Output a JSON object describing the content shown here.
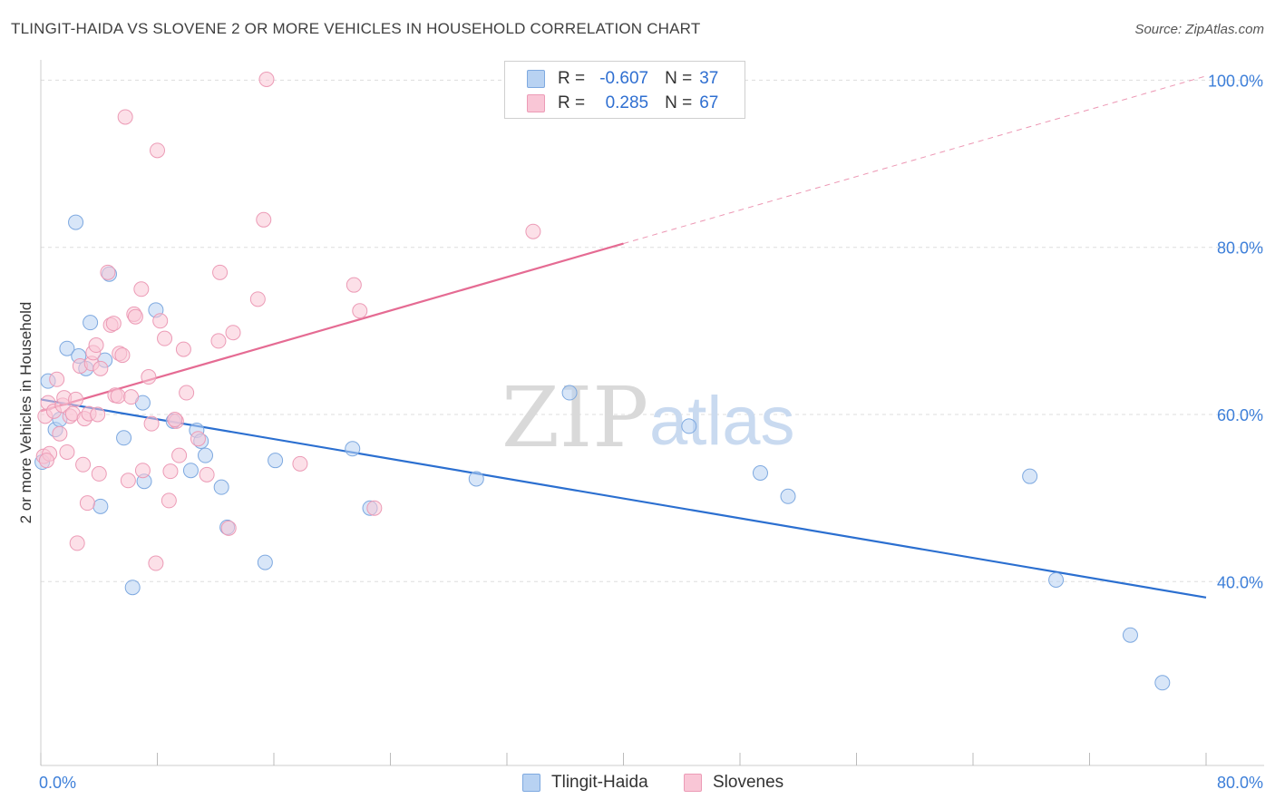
{
  "title": "TLINGIT-HAIDA VS SLOVENE 2 OR MORE VEHICLES IN HOUSEHOLD CORRELATION CHART",
  "source": "Source: ZipAtlas.com",
  "watermark": {
    "zip": "ZIP",
    "atlas": "atlas"
  },
  "legend": {
    "r_label": "R =",
    "n_label": "N =",
    "rows": [
      {
        "r": "-0.607",
        "n": "37"
      },
      {
        "r": "0.285",
        "n": "67"
      }
    ]
  },
  "colors": {
    "blue_fill": "#b8d2f2",
    "blue_stroke": "#7ea9e0",
    "blue_line": "#2b6fd0",
    "pink_fill": "#f9c6d6",
    "pink_stroke": "#ec9bb6",
    "pink_line": "#e56b93",
    "tick_text": "#3d7fd9",
    "grid": "#dddddd"
  },
  "chart_data": {
    "type": "scatter",
    "title": "TLINGIT-HAIDA VS SLOVENE 2 OR MORE VEHICLES IN HOUSEHOLD CORRELATION CHART",
    "xlabel": "",
    "ylabel": "2 or more Vehicles in Household",
    "xlim": [
      0,
      80
    ],
    "ylim": [
      18,
      102
    ],
    "x_tick_labels": [
      "0.0%",
      "80.0%"
    ],
    "y_ticks": [
      40,
      60,
      80,
      100
    ],
    "y_tick_labels": [
      "40.0%",
      "60.0%",
      "80.0%",
      "100.0%"
    ],
    "grid": true,
    "legend_position": "top-center",
    "series": [
      {
        "name": "Tlingit-Haida",
        "color": "#b8d2f2",
        "trend": {
          "x0": 0,
          "y0": 61.8,
          "x1": 80,
          "y1": 38.1,
          "dashed_from": null
        },
        "points": [
          [
            0.1,
            54.3
          ],
          [
            0.5,
            64.0
          ],
          [
            1.0,
            58.2
          ],
          [
            1.3,
            59.4
          ],
          [
            1.8,
            67.9
          ],
          [
            2.4,
            83.0
          ],
          [
            2.6,
            67.0
          ],
          [
            3.1,
            65.5
          ],
          [
            3.4,
            71.0
          ],
          [
            4.1,
            49.0
          ],
          [
            4.4,
            66.5
          ],
          [
            4.7,
            76.8
          ],
          [
            5.7,
            57.2
          ],
          [
            6.3,
            39.3
          ],
          [
            7.0,
            61.4
          ],
          [
            7.1,
            52.0
          ],
          [
            7.9,
            72.5
          ],
          [
            9.1,
            59.2
          ],
          [
            10.3,
            53.3
          ],
          [
            10.7,
            58.1
          ],
          [
            11.0,
            56.8
          ],
          [
            11.3,
            55.1
          ],
          [
            12.4,
            51.3
          ],
          [
            12.8,
            46.5
          ],
          [
            15.4,
            42.3
          ],
          [
            16.1,
            54.5
          ],
          [
            21.4,
            55.9
          ],
          [
            22.6,
            48.8
          ],
          [
            29.9,
            52.3
          ],
          [
            36.3,
            62.6
          ],
          [
            44.5,
            58.6
          ],
          [
            49.4,
            53.0
          ],
          [
            51.3,
            50.2
          ],
          [
            67.9,
            52.6
          ],
          [
            69.7,
            40.2
          ],
          [
            74.8,
            33.6
          ],
          [
            77.0,
            27.9
          ]
        ]
      },
      {
        "name": "Slovenes",
        "color": "#f9c6d6",
        "trend": {
          "x0": 0,
          "y0": 60.4,
          "x1": 80,
          "y1": 100.5,
          "dashed_from": 40
        },
        "points": [
          [
            0.2,
            55.0
          ],
          [
            0.3,
            59.8
          ],
          [
            0.5,
            61.4
          ],
          [
            0.6,
            55.3
          ],
          [
            0.9,
            60.4
          ],
          [
            1.1,
            64.2
          ],
          [
            1.3,
            57.7
          ],
          [
            1.5,
            61.1
          ],
          [
            1.6,
            62.0
          ],
          [
            1.8,
            55.5
          ],
          [
            2.0,
            59.8
          ],
          [
            2.2,
            60.1
          ],
          [
            2.4,
            61.8
          ],
          [
            2.5,
            44.6
          ],
          [
            2.7,
            65.8
          ],
          [
            2.9,
            54.0
          ],
          [
            3.0,
            59.5
          ],
          [
            3.2,
            49.4
          ],
          [
            3.3,
            60.1
          ],
          [
            3.5,
            66.1
          ],
          [
            3.6,
            67.4
          ],
          [
            3.8,
            68.3
          ],
          [
            4.0,
            52.9
          ],
          [
            4.1,
            65.5
          ],
          [
            4.6,
            77.0
          ],
          [
            4.8,
            70.7
          ],
          [
            5.0,
            70.9
          ],
          [
            5.1,
            62.3
          ],
          [
            5.3,
            62.2
          ],
          [
            5.4,
            67.3
          ],
          [
            5.6,
            67.1
          ],
          [
            5.8,
            95.6
          ],
          [
            6.0,
            52.1
          ],
          [
            6.2,
            62.1
          ],
          [
            6.4,
            72.0
          ],
          [
            6.5,
            71.7
          ],
          [
            6.9,
            75.0
          ],
          [
            7.0,
            53.3
          ],
          [
            7.4,
            64.5
          ],
          [
            7.6,
            58.9
          ],
          [
            7.9,
            42.2
          ],
          [
            8.0,
            91.6
          ],
          [
            8.2,
            71.2
          ],
          [
            8.5,
            69.1
          ],
          [
            8.8,
            49.7
          ],
          [
            8.9,
            53.2
          ],
          [
            9.3,
            59.2
          ],
          [
            9.5,
            55.1
          ],
          [
            9.8,
            67.8
          ],
          [
            10.0,
            62.6
          ],
          [
            10.8,
            57.1
          ],
          [
            11.4,
            52.8
          ],
          [
            12.2,
            68.8
          ],
          [
            12.3,
            77.0
          ],
          [
            12.9,
            46.4
          ],
          [
            13.2,
            69.8
          ],
          [
            14.9,
            73.8
          ],
          [
            15.3,
            83.3
          ],
          [
            15.5,
            100.1
          ],
          [
            17.8,
            54.1
          ],
          [
            21.5,
            75.5
          ],
          [
            21.9,
            72.4
          ],
          [
            22.9,
            48.8
          ],
          [
            33.8,
            81.9
          ],
          [
            0.4,
            54.5
          ],
          [
            9.2,
            59.4
          ],
          [
            3.9,
            60.0
          ]
        ]
      }
    ]
  },
  "bottom_legend": [
    "Tlingit-Haida",
    "Slovenes"
  ]
}
